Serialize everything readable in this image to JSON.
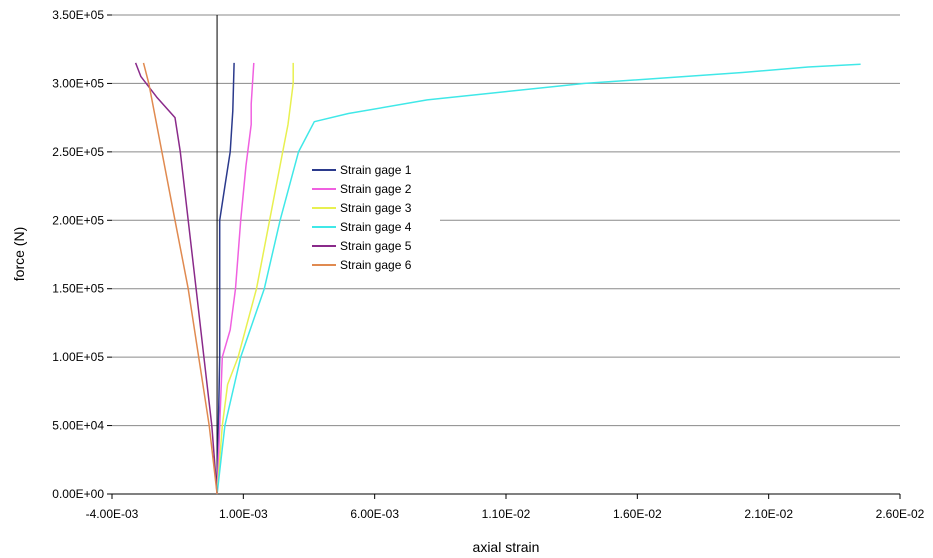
{
  "chart_data": {
    "type": "line",
    "xlabel": "axial strain",
    "ylabel": "force (N)",
    "xlim": [
      -0.004,
      0.026
    ],
    "ylim": [
      0,
      350000
    ],
    "x_ticks": [
      {
        "value": -0.004,
        "label": "-4.00E-03"
      },
      {
        "value": 0.001,
        "label": "1.00E-03"
      },
      {
        "value": 0.006,
        "label": "6.00E-03"
      },
      {
        "value": 0.011,
        "label": "1.10E-02"
      },
      {
        "value": 0.016,
        "label": "1.60E-02"
      },
      {
        "value": 0.021,
        "label": "2.10E-02"
      },
      {
        "value": 0.026,
        "label": "2.60E-02"
      }
    ],
    "y_ticks": [
      {
        "value": 0,
        "label": "0.00E+00"
      },
      {
        "value": 50000,
        "label": "5.00E+04"
      },
      {
        "value": 100000,
        "label": "1.00E+05"
      },
      {
        "value": 150000,
        "label": "1.50E+05"
      },
      {
        "value": 200000,
        "label": "2.00E+05"
      },
      {
        "value": 250000,
        "label": "2.50E+05"
      },
      {
        "value": 300000,
        "label": "3.00E+05"
      },
      {
        "value": 350000,
        "label": "3.50E+05"
      }
    ],
    "grid": "horizontal",
    "legend_position": "center-left",
    "series": [
      {
        "name": "Strain gage 1",
        "color": "#2b3a8c",
        "points": [
          [
            0,
            0
          ],
          [
            5e-05,
            50000
          ],
          [
            0.0001,
            100000
          ],
          [
            0.0001,
            150000
          ],
          [
            0.0001,
            200000
          ],
          [
            0.0003,
            225000
          ],
          [
            0.0005,
            250000
          ],
          [
            0.0006,
            280000
          ],
          [
            0.00065,
            315000
          ]
        ]
      },
      {
        "name": "Strain gage 2",
        "color": "#f060e0",
        "points": [
          [
            0,
            0
          ],
          [
            0.0001,
            50000
          ],
          [
            0.0002,
            100000
          ],
          [
            0.0005,
            120000
          ],
          [
            0.0007,
            150000
          ],
          [
            0.0009,
            200000
          ],
          [
            0.0011,
            240000
          ],
          [
            0.0013,
            270000
          ],
          [
            0.0013,
            285000
          ],
          [
            0.0014,
            315000
          ]
        ]
      },
      {
        "name": "Strain gage 3",
        "color": "#e8f050",
        "points": [
          [
            0,
            0
          ],
          [
            0.0002,
            50000
          ],
          [
            0.0004,
            80000
          ],
          [
            0.0008,
            100000
          ],
          [
            0.0015,
            150000
          ],
          [
            0.002,
            200000
          ],
          [
            0.0025,
            250000
          ],
          [
            0.0027,
            270000
          ],
          [
            0.0029,
            300000
          ],
          [
            0.0029,
            315000
          ]
        ]
      },
      {
        "name": "Strain gage 4",
        "color": "#40e8e8",
        "points": [
          [
            0,
            0
          ],
          [
            0.0003,
            50000
          ],
          [
            0.0009,
            100000
          ],
          [
            0.0018,
            150000
          ],
          [
            0.0024,
            200000
          ],
          [
            0.0031,
            250000
          ],
          [
            0.0037,
            272000
          ],
          [
            0.005,
            278000
          ],
          [
            0.008,
            288000
          ],
          [
            0.011,
            294000
          ],
          [
            0.014,
            300000
          ],
          [
            0.017,
            304000
          ],
          [
            0.02,
            308000
          ],
          [
            0.0225,
            312000
          ],
          [
            0.0245,
            314000
          ]
        ]
      },
      {
        "name": "Strain gage 5",
        "color": "#8a2a8a",
        "points": [
          [
            0,
            0
          ],
          [
            -0.0002,
            50000
          ],
          [
            -0.0005,
            100000
          ],
          [
            -0.0008,
            150000
          ],
          [
            -0.0011,
            200000
          ],
          [
            -0.0014,
            250000
          ],
          [
            -0.0016,
            275000
          ],
          [
            -0.0023,
            290000
          ],
          [
            -0.0029,
            305000
          ],
          [
            -0.0031,
            315000
          ]
        ]
      },
      {
        "name": "Strain gage 6",
        "color": "#e08a50",
        "points": [
          [
            0,
            0
          ],
          [
            -0.0003,
            50000
          ],
          [
            -0.0007,
            100000
          ],
          [
            -0.0011,
            150000
          ],
          [
            -0.0016,
            200000
          ],
          [
            -0.0021,
            250000
          ],
          [
            -0.0026,
            300000
          ],
          [
            -0.0028,
            315000
          ]
        ]
      }
    ],
    "annotations": [
      {
        "type": "vertical-line",
        "x": 0
      }
    ]
  }
}
